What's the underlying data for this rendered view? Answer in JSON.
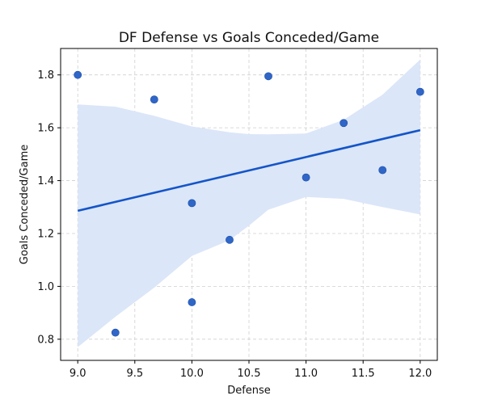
{
  "chart_data": {
    "type": "scatter",
    "title": "DF Defense vs Goals Conceded/Game",
    "xlabel": "Defense",
    "ylabel": "Goals Conceded/Game",
    "xlim": [
      8.85,
      12.15
    ],
    "ylim": [
      0.72,
      1.9
    ],
    "xticks": [
      9.0,
      9.5,
      10.0,
      10.5,
      11.0,
      11.5,
      12.0
    ],
    "xtick_labels": [
      "9.0",
      "9.5",
      "10.0",
      "10.5",
      "11.0",
      "11.5",
      "12.0"
    ],
    "yticks": [
      0.8,
      1.0,
      1.2,
      1.4,
      1.6,
      1.8
    ],
    "ytick_labels": [
      "0.8",
      "1.0",
      "1.2",
      "1.4",
      "1.6",
      "1.8"
    ],
    "grid": true,
    "points": [
      {
        "x": 9.0,
        "y": 1.8
      },
      {
        "x": 9.33,
        "y": 0.825
      },
      {
        "x": 9.67,
        "y": 1.707
      },
      {
        "x": 10.0,
        "y": 1.315
      },
      {
        "x": 10.0,
        "y": 0.94
      },
      {
        "x": 10.33,
        "y": 1.176
      },
      {
        "x": 10.67,
        "y": 1.795
      },
      {
        "x": 11.0,
        "y": 1.412
      },
      {
        "x": 11.33,
        "y": 1.618
      },
      {
        "x": 11.67,
        "y": 1.44
      },
      {
        "x": 12.0,
        "y": 1.736
      }
    ],
    "regression_line": {
      "x": [
        9.0,
        12.0
      ],
      "y": [
        1.286,
        1.591
      ]
    },
    "confidence_band": {
      "x": [
        9.0,
        9.33,
        9.67,
        10.0,
        10.33,
        10.5,
        10.67,
        11.0,
        11.33,
        11.67,
        12.0
      ],
      "upper": [
        1.688,
        1.68,
        1.645,
        1.605,
        1.583,
        1.576,
        1.575,
        1.578,
        1.63,
        1.725,
        1.858
      ],
      "lower": [
        0.77,
        0.885,
        0.995,
        1.115,
        1.175,
        1.23,
        1.29,
        1.338,
        1.331,
        1.3,
        1.272
      ]
    },
    "colors": {
      "points": "#2f66c8",
      "line": "#1455c8",
      "band": "#dbe6f8",
      "grid": "#cfcfcf",
      "axis": "#000000"
    }
  }
}
